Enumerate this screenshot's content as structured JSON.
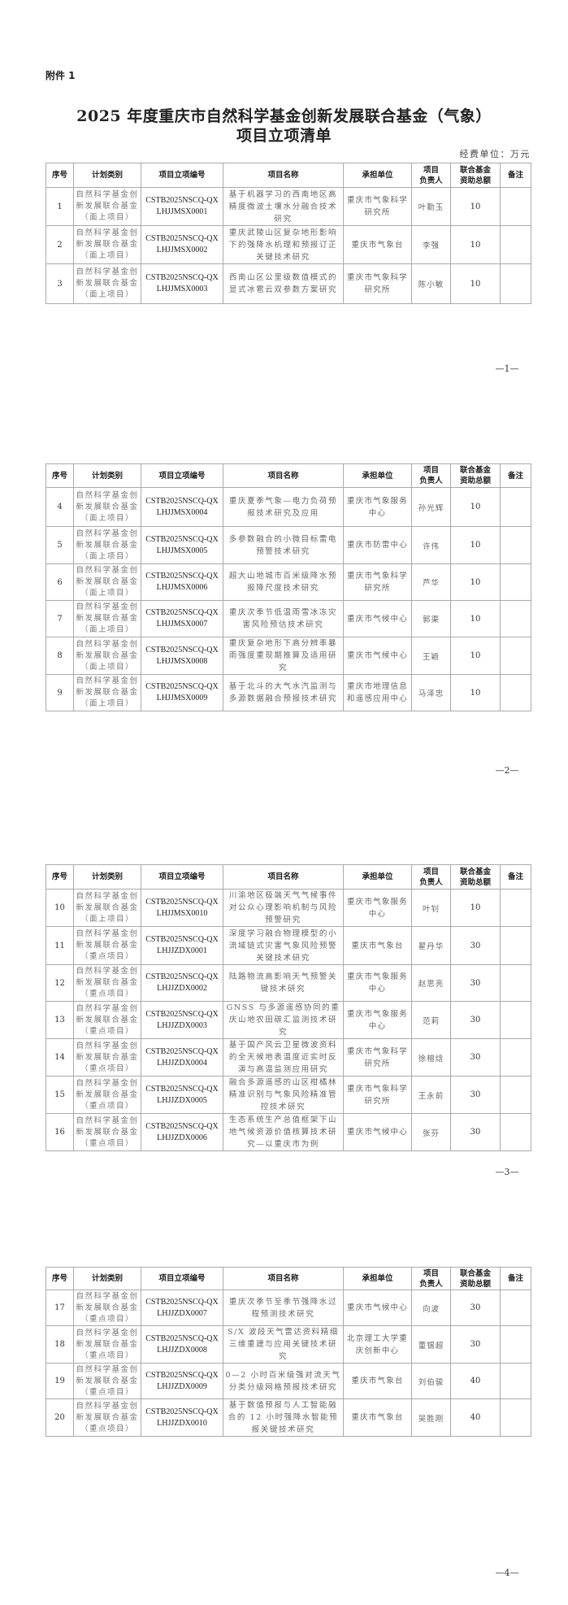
{
  "attachment_label": "附件 1",
  "title_line1": "2025 年度重庆市自然科学基金创新发展联合基金（气象）",
  "title_line2": "项目立项清单",
  "unit_note": "经费单位：万元",
  "columns": [
    "序号",
    "计划类别",
    "项目立项编号",
    "项目名称",
    "承担单位",
    "项目\n负责人",
    "联合基金\n资助总额",
    "备注"
  ],
  "page_numbers": [
    "—1—",
    "—2—",
    "—3—",
    "—4—"
  ],
  "rows": [
    {
      "no": "1",
      "category": "自然科学基金创新发展联合基金（面上项目）",
      "code": "CSTB2025NSCQ-QXLHJJMSX0001",
      "name": "基于机器学习的西南地区高精度微波土壤水分融合技术研究",
      "unit": "重庆市气象科学研究所",
      "leader": "叶勤玉",
      "amount": "10",
      "note": ""
    },
    {
      "no": "2",
      "category": "自然科学基金创新发展联合基金（面上项目）",
      "code": "CSTB2025NSCQ-QXLHJJMSX0002",
      "name": "重庆武陵山区复杂地形影响下的强降水机理和预报订正关键技术研究",
      "unit": "重庆市气象台",
      "leader": "李强",
      "amount": "10",
      "note": ""
    },
    {
      "no": "3",
      "category": "自然科学基金创新发展联合基金（面上项目）",
      "code": "CSTB2025NSCQ-QXLHJJMSX0003",
      "name": "西南山区公里级数值模式的显式冰雹云双参数方案研究",
      "unit": "重庆市气象科学研究所",
      "leader": "陈小敏",
      "amount": "10",
      "note": ""
    },
    {
      "no": "4",
      "category": "自然科学基金创新发展联合基金（面上项目）",
      "code": "CSTB2025NSCQ-QXLHJJMSX0004",
      "name": "重庆夏季气象—电力负荷预报技术研究及应用",
      "unit": "重庆市气象服务中心",
      "leader": "孙光辉",
      "amount": "10",
      "note": ""
    },
    {
      "no": "5",
      "category": "自然科学基金创新发展联合基金（面上项目）",
      "code": "CSTB2025NSCQ-QXLHJJMSX0005",
      "name": "多参数融合的小微目标雷电预警技术研究",
      "unit": "重庆市防雷中心",
      "leader": "许伟",
      "amount": "10",
      "note": ""
    },
    {
      "no": "6",
      "category": "自然科学基金创新发展联合基金（面上项目）",
      "code": "CSTB2025NSCQ-QXLHJJMSX0006",
      "name": "超大山地城市百米级降水预报降尺度技术研究",
      "unit": "重庆市气象科学研究所",
      "leader": "芦华",
      "amount": "10",
      "note": ""
    },
    {
      "no": "7",
      "category": "自然科学基金创新发展联合基金（面上项目）",
      "code": "CSTB2025NSCQ-QXLHJJMSX0007",
      "name": "重庆次季节低温雨雪冰冻灾害风险预估技术研究",
      "unit": "重庆市气候中心",
      "leader": "郭渠",
      "amount": "10",
      "note": ""
    },
    {
      "no": "8",
      "category": "自然科学基金创新发展联合基金（面上项目）",
      "code": "CSTB2025NSCQ-QXLHJJMSX0008",
      "name": "重庆复杂地形下高分辨率暴雨强度重现期推算及适用研究",
      "unit": "重庆市气候中心",
      "leader": "王颖",
      "amount": "10",
      "note": ""
    },
    {
      "no": "9",
      "category": "自然科学基金创新发展联合基金（面上项目）",
      "code": "CSTB2025NSCQ-QXLHJJMSX0009",
      "name": "基于北斗的大气水汽监测与多源数据融合预报技术研究",
      "unit": "重庆市地理信息和遥感应用中心",
      "leader": "马泽忠",
      "amount": "10",
      "note": ""
    },
    {
      "no": "10",
      "category": "自然科学基金创新发展联合基金（面上项目）",
      "code": "CSTB2025NSCQ-QXLHJJMSX0010",
      "name": "川渝地区极端天气气候事件对公众心理影响机制与风险预警研究",
      "unit": "重庆市气象服务中心",
      "leader": "叶钊",
      "amount": "10",
      "note": ""
    },
    {
      "no": "11",
      "category": "自然科学基金创新发展联合基金（重点项目）",
      "code": "CSTB2025NSCQ-QXLHJJZDX0001",
      "name": "深度学习融合物理模型的小流域链式灾害气象风险预警关键技术研究",
      "unit": "重庆市气象台",
      "leader": "翟丹华",
      "amount": "30",
      "note": ""
    },
    {
      "no": "12",
      "category": "自然科学基金创新发展联合基金（重点项目）",
      "code": "CSTB2025NSCQ-QXLHJJZDX0002",
      "name": "陆路物流高影响天气预警关键技术研究",
      "unit": "重庆市气象服务中心",
      "leader": "赵思亮",
      "amount": "30",
      "note": ""
    },
    {
      "no": "13",
      "category": "自然科学基金创新发展联合基金（重点项目）",
      "code": "CSTB2025NSCQ-QXLHJJZDX0003",
      "name": "GNSS 与多源遥感协同的重庆山地农田碳汇监测技术研究",
      "unit": "重庆市气象服务中心",
      "leader": "范莉",
      "amount": "30",
      "note": ""
    },
    {
      "no": "14",
      "category": "自然科学基金创新发展联合基金（重点项目）",
      "code": "CSTB2025NSCQ-QXLHJJZDX0004",
      "name": "基于国产风云卫星微波资料的全天候地表温度近实时反演与高温监测应用研究",
      "unit": "重庆市气象科学研究所",
      "leader": "徐榕焓",
      "amount": "30",
      "note": ""
    },
    {
      "no": "15",
      "category": "自然科学基金创新发展联合基金（重点项目）",
      "code": "CSTB2025NSCQ-QXLHJJZDX0005",
      "name": "融合多源遥感的山区柑橘林精准识别与气象风险精准管控技术研究",
      "unit": "重庆市气象科学研究所",
      "leader": "王永前",
      "amount": "30",
      "note": ""
    },
    {
      "no": "16",
      "category": "自然科学基金创新发展联合基金（重点项目）",
      "code": "CSTB2025NSCQ-QXLHJJZDX0006",
      "name": "生态系统生产总值框架下山地气候资源价值核算技术研究—以重庆市为例",
      "unit": "重庆市气候中心",
      "leader": "张芬",
      "amount": "30",
      "note": ""
    },
    {
      "no": "17",
      "category": "自然科学基金创新发展联合基金（重点项目）",
      "code": "CSTB2025NSCQ-QXLHJJZDX0007",
      "name": "重庆次季节至季节强降水过程预测技术研究",
      "unit": "重庆市气候中心",
      "leader": "向波",
      "amount": "30",
      "note": ""
    },
    {
      "no": "18",
      "category": "自然科学基金创新发展联合基金（重点项目）",
      "code": "CSTB2025NSCQ-QXLHJJZDX0008",
      "name": "S/X 波段天气雷达资料精细三维重建与应用关键技术研究",
      "unit": "北京理工大学重庆创新中心",
      "leader": "董锡超",
      "amount": "30",
      "note": ""
    },
    {
      "no": "19",
      "category": "自然科学基金创新发展联合基金（重点项目）",
      "code": "CSTB2025NSCQ-QXLHJJZDX0009",
      "name": "0—2 小时百米级强对流天气分类分级网格预报技术研究",
      "unit": "重庆市气象台",
      "leader": "刘伯骏",
      "amount": "40",
      "note": ""
    },
    {
      "no": "20",
      "category": "自然科学基金创新发展联合基金（重点项目）",
      "code": "CSTB2025NSCQ-QXLHJJZDX0010",
      "name": "基于数值预报与人工智能融合的 12 小时强降水智能预报关键技术研究",
      "unit": "重庆市气象台",
      "leader": "吴胜刚",
      "amount": "40",
      "note": ""
    }
  ]
}
